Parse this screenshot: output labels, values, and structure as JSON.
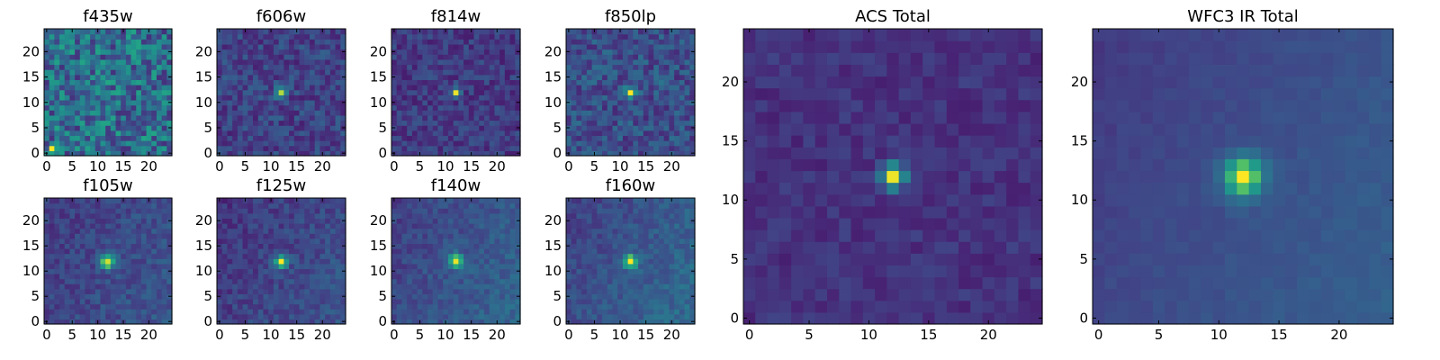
{
  "chart_data": [
    {
      "type": "heatmap",
      "title": "f435w",
      "xticks": [
        0,
        5,
        10,
        15,
        20
      ],
      "yticks": [
        0,
        5,
        10,
        15,
        20
      ],
      "xlim": [
        -0.5,
        24.5
      ],
      "ylim": [
        -0.5,
        24.5
      ],
      "grid_size": [
        25,
        25
      ],
      "colormap": "viridis",
      "source": {
        "x": 12,
        "y": 12,
        "peak": 0.05,
        "sigma": 1.2,
        "background": 0.45,
        "noise": 0.28,
        "gradient": 0.0
      },
      "extra_sources": [
        {
          "x": 1,
          "y": 1,
          "peak": 0.9,
          "sigma": 0.45
        }
      ]
    },
    {
      "type": "heatmap",
      "title": "f606w",
      "xticks": [
        0,
        5,
        10,
        15,
        20
      ],
      "yticks": [
        0,
        5,
        10,
        15,
        20
      ],
      "xlim": [
        -0.5,
        24.5
      ],
      "ylim": [
        -0.5,
        24.5
      ],
      "grid_size": [
        25,
        25
      ],
      "colormap": "viridis",
      "source": {
        "x": 12,
        "y": 12,
        "peak": 0.75,
        "sigma": 0.75,
        "background": 0.25,
        "noise": 0.14,
        "gradient": 0.0
      },
      "extra_sources": []
    },
    {
      "type": "heatmap",
      "title": "f814w",
      "xticks": [
        0,
        5,
        10,
        15,
        20
      ],
      "yticks": [
        0,
        5,
        10,
        15,
        20
      ],
      "xlim": [
        -0.5,
        24.5
      ],
      "ylim": [
        -0.5,
        24.5
      ],
      "grid_size": [
        25,
        25
      ],
      "colormap": "viridis",
      "source": {
        "x": 12,
        "y": 12,
        "peak": 0.85,
        "sigma": 0.6,
        "background": 0.22,
        "noise": 0.12,
        "gradient": 0.0
      },
      "extra_sources": []
    },
    {
      "type": "heatmap",
      "title": "f850lp",
      "xticks": [
        0,
        5,
        10,
        15,
        20
      ],
      "yticks": [
        0,
        5,
        10,
        15,
        20
      ],
      "xlim": [
        -0.5,
        24.5
      ],
      "ylim": [
        -0.5,
        24.5
      ],
      "grid_size": [
        25,
        25
      ],
      "colormap": "viridis",
      "source": {
        "x": 12,
        "y": 12,
        "peak": 0.7,
        "sigma": 0.8,
        "background": 0.3,
        "noise": 0.16,
        "gradient": 0.0
      },
      "extra_sources": [
        {
          "x": 18,
          "y": 14,
          "peak": 0.3,
          "sigma": 0.6
        }
      ]
    },
    {
      "type": "heatmap",
      "title": "ACS Total",
      "xticks": [
        0,
        5,
        10,
        15,
        20
      ],
      "yticks": [
        0,
        5,
        10,
        15,
        20
      ],
      "xlim": [
        -0.5,
        24.5
      ],
      "ylim": [
        -0.5,
        24.5
      ],
      "grid_size": [
        25,
        25
      ],
      "colormap": "viridis",
      "source": {
        "x": 12,
        "y": 12,
        "peak": 0.85,
        "sigma": 0.75,
        "background": 0.18,
        "noise": 0.07,
        "gradient": 0.0
      },
      "extra_sources": []
    },
    {
      "type": "heatmap",
      "title": "WFC3 IR Total",
      "xticks": [
        0,
        5,
        10,
        15,
        20
      ],
      "yticks": [
        0,
        5,
        10,
        15,
        20
      ],
      "xlim": [
        -0.5,
        24.5
      ],
      "ylim": [
        -0.5,
        24.5
      ],
      "grid_size": [
        25,
        25
      ],
      "colormap": "viridis",
      "source": {
        "x": 12,
        "y": 12,
        "peak": 0.7,
        "sigma": 1.2,
        "background": 0.3,
        "noise": 0.03,
        "gradient": 0.12
      },
      "extra_sources": []
    },
    {
      "type": "heatmap",
      "title": "f105w",
      "xticks": [
        0,
        5,
        10,
        15,
        20
      ],
      "yticks": [
        0,
        5,
        10,
        15,
        20
      ],
      "xlim": [
        -0.5,
        24.5
      ],
      "ylim": [
        -0.5,
        24.5
      ],
      "grid_size": [
        25,
        25
      ],
      "colormap": "viridis",
      "source": {
        "x": 12,
        "y": 12,
        "peak": 0.75,
        "sigma": 1.0,
        "background": 0.28,
        "noise": 0.1,
        "gradient": 0.08
      },
      "extra_sources": []
    },
    {
      "type": "heatmap",
      "title": "f125w",
      "xticks": [
        0,
        5,
        10,
        15,
        20
      ],
      "yticks": [
        0,
        5,
        10,
        15,
        20
      ],
      "xlim": [
        -0.5,
        24.5
      ],
      "ylim": [
        -0.5,
        24.5
      ],
      "grid_size": [
        25,
        25
      ],
      "colormap": "viridis",
      "source": {
        "x": 12,
        "y": 12,
        "peak": 0.75,
        "sigma": 0.9,
        "background": 0.26,
        "noise": 0.1,
        "gradient": 0.1
      },
      "extra_sources": []
    },
    {
      "type": "heatmap",
      "title": "f140w",
      "xticks": [
        0,
        5,
        10,
        15,
        20
      ],
      "yticks": [
        0,
        5,
        10,
        15,
        20
      ],
      "xlim": [
        -0.5,
        24.5
      ],
      "ylim": [
        -0.5,
        24.5
      ],
      "grid_size": [
        25,
        25
      ],
      "colormap": "viridis",
      "source": {
        "x": 12,
        "y": 12,
        "peak": 0.72,
        "sigma": 1.0,
        "background": 0.32,
        "noise": 0.09,
        "gradient": 0.12
      },
      "extra_sources": []
    },
    {
      "type": "heatmap",
      "title": "f160w",
      "xticks": [
        0,
        5,
        10,
        15,
        20
      ],
      "yticks": [
        0,
        5,
        10,
        15,
        20
      ],
      "xlim": [
        -0.5,
        24.5
      ],
      "ylim": [
        -0.5,
        24.5
      ],
      "grid_size": [
        25,
        25
      ],
      "colormap": "viridis",
      "source": {
        "x": 12,
        "y": 12,
        "peak": 0.68,
        "sigma": 1.0,
        "background": 0.34,
        "noise": 0.09,
        "gradient": 0.14
      },
      "extra_sources": []
    }
  ]
}
